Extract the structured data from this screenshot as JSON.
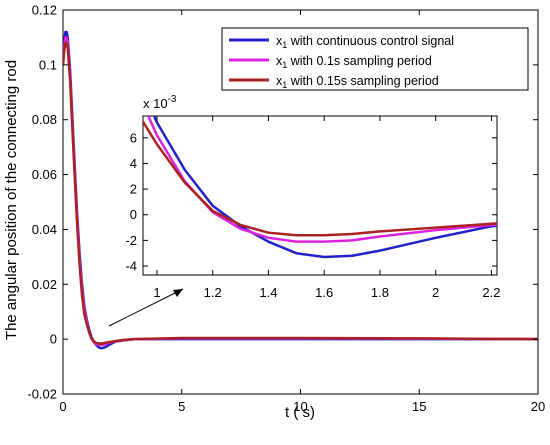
{
  "chart_data": [
    {
      "type": "line",
      "title": "",
      "xlabel": "t ( s)",
      "ylabel": "The angular position of the connecting rod",
      "xlim": [
        0,
        20
      ],
      "ylim": [
        -0.02,
        0.12
      ],
      "xticks": [
        0,
        5,
        10,
        15,
        20
      ],
      "xtick_labels": [
        "0",
        "5",
        "10",
        "15",
        "20"
      ],
      "yticks": [
        -0.02,
        0,
        0.02,
        0.04,
        0.06,
        0.08,
        0.1,
        0.12
      ],
      "ytick_labels": [
        "-0.02",
        "0",
        "0.02",
        "0.04",
        "0.06",
        "0.08",
        "0.1",
        "0.12"
      ],
      "grid": false,
      "legend_position": "top-right",
      "series": [
        {
          "name": "x1 with continuous control signal",
          "legend_main": "x",
          "legend_sub": "1",
          "legend_rest": " with continuous control signal",
          "color": "#2222cc",
          "x": [
            0,
            0.05,
            0.1,
            0.15,
            0.2,
            0.3,
            0.4,
            0.5,
            0.6,
            0.7,
            0.8,
            0.9,
            1.0,
            1.1,
            1.2,
            1.3,
            1.4,
            1.5,
            1.6,
            1.7,
            1.8,
            2.0,
            2.2,
            2.5,
            3,
            5,
            10,
            15,
            20
          ],
          "y": [
            0.1,
            0.108,
            0.112,
            0.112,
            0.11,
            0.098,
            0.08,
            0.062,
            0.045,
            0.031,
            0.02,
            0.012,
            0.0072,
            0.0035,
            0.0007,
            -0.0009,
            -0.0021,
            -0.003,
            -0.0033,
            -0.0032,
            -0.0028,
            -0.0018,
            -0.0009,
            -0.0005,
            0,
            0,
            0,
            0,
            0
          ]
        },
        {
          "name": "x1 with 0.1s sampling period",
          "legend_main": "x",
          "legend_sub": "1",
          "legend_rest": " with 0.1s sampling period",
          "color": "#dd22dd",
          "x": [
            0,
            0.05,
            0.1,
            0.15,
            0.2,
            0.3,
            0.4,
            0.5,
            0.6,
            0.7,
            0.8,
            0.9,
            1.0,
            1.1,
            1.2,
            1.3,
            1.4,
            1.5,
            1.6,
            1.7,
            1.8,
            2.0,
            2.2,
            2.5,
            3,
            5,
            10,
            15,
            20
          ],
          "y": [
            0.1,
            0.106,
            0.11,
            0.11,
            0.108,
            0.096,
            0.078,
            0.06,
            0.043,
            0.029,
            0.018,
            0.011,
            0.0062,
            0.0026,
            0.0002,
            -0.0011,
            -0.0018,
            -0.0021,
            -0.0021,
            -0.002,
            -0.0017,
            -0.0012,
            -0.0008,
            -0.0004,
            0,
            0.0003,
            0.0003,
            0.0002,
            0
          ]
        },
        {
          "name": "x1 with 0.15s sampling period",
          "legend_main": "x",
          "legend_sub": "1",
          "legend_rest": " with 0.15s sampling period",
          "color": "#aa2222",
          "x": [
            0,
            0.05,
            0.1,
            0.15,
            0.2,
            0.3,
            0.4,
            0.5,
            0.6,
            0.7,
            0.8,
            0.9,
            1.0,
            1.1,
            1.2,
            1.3,
            1.4,
            1.5,
            1.6,
            1.7,
            1.8,
            2.0,
            2.2,
            2.5,
            3,
            5,
            10,
            15,
            20
          ],
          "y": [
            0.1,
            0.105,
            0.108,
            0.108,
            0.106,
            0.094,
            0.076,
            0.058,
            0.041,
            0.027,
            0.016,
            0.009,
            0.0055,
            0.0025,
            0.0003,
            -0.0008,
            -0.0014,
            -0.0016,
            -0.0016,
            -0.0015,
            -0.0013,
            -0.001,
            -0.0007,
            -0.0003,
            0,
            0.0004,
            0.0004,
            0.0003,
            0
          ]
        }
      ]
    },
    {
      "type": "line",
      "title": "",
      "xlim": [
        0.95,
        2.22
      ],
      "ylim": [
        -0.0047,
        0.0077
      ],
      "xticks": [
        1,
        1.2,
        1.4,
        1.6,
        1.8,
        2,
        2.2
      ],
      "xtick_labels": [
        "1",
        "1.2",
        "1.4",
        "1.6",
        "1.8",
        "2",
        "2.2"
      ],
      "yticks": [
        -0.004,
        -0.002,
        0,
        0.002,
        0.004,
        0.006
      ],
      "ytick_labels": [
        "-4",
        "-2",
        "0",
        "2",
        "4",
        "6"
      ],
      "y_exponent_label": "x 10",
      "y_exponent_power": "-3",
      "note": "inset zoom of the main chart near t = 1 to 2.2 s"
    }
  ]
}
